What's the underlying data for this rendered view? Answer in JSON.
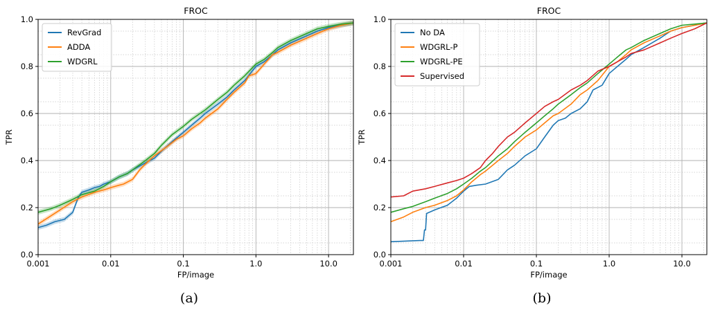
{
  "chart_data": [
    {
      "type": "line",
      "title": "FROC",
      "xlabel": "FP/image",
      "ylabel": "TPR",
      "xscale": "log",
      "xlim": [
        0.001,
        22
      ],
      "ylim": [
        0.0,
        1.0
      ],
      "x_ticks": [
        "0.001",
        "0.01",
        "0.1",
        "1.0",
        "10.0"
      ],
      "y_ticks": [
        "0.0",
        "0.2",
        "0.4",
        "0.6",
        "0.8",
        "1.0"
      ],
      "grid": true,
      "legend_position": "top-left",
      "series": [
        {
          "name": "RevGrad",
          "color": "#1f77b4",
          "band": true,
          "points": [
            [
              0.001,
              0.115
            ],
            [
              0.0013,
              0.125
            ],
            [
              0.0017,
              0.14
            ],
            [
              0.0023,
              0.15
            ],
            [
              0.003,
              0.18
            ],
            [
              0.0033,
              0.215
            ],
            [
              0.0036,
              0.245
            ],
            [
              0.004,
              0.265
            ],
            [
              0.005,
              0.275
            ],
            [
              0.006,
              0.285
            ],
            [
              0.007,
              0.29
            ],
            [
              0.008,
              0.3
            ],
            [
              0.01,
              0.31
            ],
            [
              0.013,
              0.33
            ],
            [
              0.017,
              0.345
            ],
            [
              0.02,
              0.36
            ],
            [
              0.03,
              0.39
            ],
            [
              0.04,
              0.41
            ],
            [
              0.05,
              0.44
            ],
            [
              0.07,
              0.48
            ],
            [
              0.1,
              0.52
            ],
            [
              0.13,
              0.55
            ],
            [
              0.17,
              0.58
            ],
            [
              0.2,
              0.6
            ],
            [
              0.3,
              0.64
            ],
            [
              0.4,
              0.67
            ],
            [
              0.5,
              0.7
            ],
            [
              0.7,
              0.74
            ],
            [
              1.0,
              0.8
            ],
            [
              1.3,
              0.82
            ],
            [
              1.7,
              0.85
            ],
            [
              2.0,
              0.87
            ],
            [
              3.0,
              0.9
            ],
            [
              5.0,
              0.93
            ],
            [
              7.0,
              0.95
            ],
            [
              10.0,
              0.965
            ],
            [
              15.0,
              0.975
            ],
            [
              22.0,
              0.985
            ]
          ]
        },
        {
          "name": "ADDA",
          "color": "#ff7f0e",
          "band": true,
          "points": [
            [
              0.001,
              0.13
            ],
            [
              0.0015,
              0.165
            ],
            [
              0.002,
              0.19
            ],
            [
              0.003,
              0.225
            ],
            [
              0.004,
              0.245
            ],
            [
              0.006,
              0.265
            ],
            [
              0.008,
              0.275
            ],
            [
              0.01,
              0.285
            ],
            [
              0.013,
              0.295
            ],
            [
              0.015,
              0.3
            ],
            [
              0.02,
              0.32
            ],
            [
              0.025,
              0.36
            ],
            [
              0.03,
              0.385
            ],
            [
              0.04,
              0.42
            ],
            [
              0.06,
              0.46
            ],
            [
              0.08,
              0.49
            ],
            [
              0.1,
              0.505
            ],
            [
              0.13,
              0.535
            ],
            [
              0.17,
              0.56
            ],
            [
              0.2,
              0.58
            ],
            [
              0.3,
              0.62
            ],
            [
              0.4,
              0.66
            ],
            [
              0.5,
              0.69
            ],
            [
              0.7,
              0.73
            ],
            [
              0.8,
              0.76
            ],
            [
              1.0,
              0.77
            ],
            [
              1.3,
              0.81
            ],
            [
              1.7,
              0.85
            ],
            [
              2.0,
              0.86
            ],
            [
              3.0,
              0.89
            ],
            [
              5.0,
              0.92
            ],
            [
              7.0,
              0.94
            ],
            [
              10.0,
              0.96
            ],
            [
              15.0,
              0.975
            ],
            [
              22.0,
              0.985
            ]
          ]
        },
        {
          "name": "WDGRL",
          "color": "#2ca02c",
          "band": true,
          "points": [
            [
              0.001,
              0.18
            ],
            [
              0.0015,
              0.195
            ],
            [
              0.002,
              0.21
            ],
            [
              0.003,
              0.235
            ],
            [
              0.004,
              0.255
            ],
            [
              0.006,
              0.27
            ],
            [
              0.008,
              0.29
            ],
            [
              0.01,
              0.31
            ],
            [
              0.013,
              0.33
            ],
            [
              0.017,
              0.345
            ],
            [
              0.02,
              0.36
            ],
            [
              0.03,
              0.4
            ],
            [
              0.04,
              0.43
            ],
            [
              0.05,
              0.465
            ],
            [
              0.07,
              0.51
            ],
            [
              0.1,
              0.545
            ],
            [
              0.13,
              0.575
            ],
            [
              0.17,
              0.6
            ],
            [
              0.2,
              0.615
            ],
            [
              0.3,
              0.66
            ],
            [
              0.4,
              0.69
            ],
            [
              0.5,
              0.72
            ],
            [
              0.7,
              0.76
            ],
            [
              1.0,
              0.81
            ],
            [
              1.3,
              0.83
            ],
            [
              1.7,
              0.86
            ],
            [
              2.0,
              0.88
            ],
            [
              3.0,
              0.91
            ],
            [
              5.0,
              0.94
            ],
            [
              7.0,
              0.96
            ],
            [
              10.0,
              0.97
            ],
            [
              15.0,
              0.98
            ],
            [
              22.0,
              0.985
            ]
          ]
        }
      ]
    },
    {
      "type": "line",
      "title": "FROC",
      "xlabel": "FP/image",
      "ylabel": "TPR",
      "xscale": "log",
      "xlim": [
        0.001,
        22
      ],
      "ylim": [
        0.0,
        1.0
      ],
      "x_ticks": [
        "0.001",
        "0.01",
        "0.1",
        "1.0",
        "10.0"
      ],
      "y_ticks": [
        "0.0",
        "0.2",
        "0.4",
        "0.6",
        "0.8",
        "1.0"
      ],
      "grid": true,
      "legend_position": "top-left",
      "series": [
        {
          "name": "No DA",
          "color": "#1f77b4",
          "points": [
            [
              0.001,
              0.055
            ],
            [
              0.0025,
              0.06
            ],
            [
              0.0028,
              0.06
            ],
            [
              0.0029,
              0.105
            ],
            [
              0.003,
              0.105
            ],
            [
              0.0031,
              0.175
            ],
            [
              0.004,
              0.19
            ],
            [
              0.006,
              0.21
            ],
            [
              0.008,
              0.24
            ],
            [
              0.01,
              0.27
            ],
            [
              0.012,
              0.29
            ],
            [
              0.015,
              0.295
            ],
            [
              0.02,
              0.3
            ],
            [
              0.03,
              0.32
            ],
            [
              0.04,
              0.36
            ],
            [
              0.05,
              0.38
            ],
            [
              0.07,
              0.42
            ],
            [
              0.1,
              0.45
            ],
            [
              0.13,
              0.5
            ],
            [
              0.17,
              0.55
            ],
            [
              0.2,
              0.57
            ],
            [
              0.25,
              0.58
            ],
            [
              0.3,
              0.6
            ],
            [
              0.4,
              0.62
            ],
            [
              0.5,
              0.65
            ],
            [
              0.6,
              0.7
            ],
            [
              0.8,
              0.72
            ],
            [
              1.0,
              0.77
            ],
            [
              1.3,
              0.8
            ],
            [
              1.7,
              0.83
            ],
            [
              2.0,
              0.85
            ],
            [
              3.0,
              0.88
            ],
            [
              5.0,
              0.92
            ],
            [
              7.0,
              0.95
            ],
            [
              10.0,
              0.965
            ],
            [
              15.0,
              0.975
            ],
            [
              22.0,
              0.985
            ]
          ]
        },
        {
          "name": "WDGRL-P",
          "color": "#ff7f0e",
          "points": [
            [
              0.001,
              0.14
            ],
            [
              0.0015,
              0.16
            ],
            [
              0.002,
              0.18
            ],
            [
              0.003,
              0.2
            ],
            [
              0.004,
              0.21
            ],
            [
              0.006,
              0.23
            ],
            [
              0.008,
              0.25
            ],
            [
              0.01,
              0.275
            ],
            [
              0.013,
              0.31
            ],
            [
              0.017,
              0.34
            ],
            [
              0.02,
              0.355
            ],
            [
              0.03,
              0.4
            ],
            [
              0.04,
              0.43
            ],
            [
              0.05,
              0.46
            ],
            [
              0.07,
              0.5
            ],
            [
              0.1,
              0.53
            ],
            [
              0.13,
              0.56
            ],
            [
              0.17,
              0.59
            ],
            [
              0.2,
              0.6
            ],
            [
              0.3,
              0.64
            ],
            [
              0.4,
              0.68
            ],
            [
              0.5,
              0.7
            ],
            [
              0.7,
              0.74
            ],
            [
              1.0,
              0.8
            ],
            [
              1.3,
              0.82
            ],
            [
              1.7,
              0.85
            ],
            [
              2.0,
              0.87
            ],
            [
              3.0,
              0.9
            ],
            [
              5.0,
              0.93
            ],
            [
              7.0,
              0.95
            ],
            [
              10.0,
              0.965
            ],
            [
              15.0,
              0.975
            ],
            [
              22.0,
              0.985
            ]
          ]
        },
        {
          "name": "WDGRL-PE",
          "color": "#2ca02c",
          "points": [
            [
              0.001,
              0.18
            ],
            [
              0.0015,
              0.195
            ],
            [
              0.002,
              0.205
            ],
            [
              0.003,
              0.225
            ],
            [
              0.004,
              0.24
            ],
            [
              0.006,
              0.26
            ],
            [
              0.008,
              0.28
            ],
            [
              0.01,
              0.3
            ],
            [
              0.013,
              0.325
            ],
            [
              0.017,
              0.355
            ],
            [
              0.02,
              0.37
            ],
            [
              0.03,
              0.42
            ],
            [
              0.04,
              0.45
            ],
            [
              0.05,
              0.48
            ],
            [
              0.07,
              0.52
            ],
            [
              0.1,
              0.56
            ],
            [
              0.13,
              0.59
            ],
            [
              0.17,
              0.62
            ],
            [
              0.2,
              0.64
            ],
            [
              0.3,
              0.68
            ],
            [
              0.4,
              0.71
            ],
            [
              0.5,
              0.73
            ],
            [
              0.7,
              0.77
            ],
            [
              1.0,
              0.81
            ],
            [
              1.3,
              0.84
            ],
            [
              1.7,
              0.87
            ],
            [
              2.0,
              0.88
            ],
            [
              3.0,
              0.91
            ],
            [
              5.0,
              0.94
            ],
            [
              7.0,
              0.96
            ],
            [
              10.0,
              0.975
            ],
            [
              15.0,
              0.98
            ],
            [
              22.0,
              0.985
            ]
          ]
        },
        {
          "name": "Supervised",
          "color": "#d62728",
          "points": [
            [
              0.001,
              0.245
            ],
            [
              0.0015,
              0.25
            ],
            [
              0.002,
              0.27
            ],
            [
              0.003,
              0.28
            ],
            [
              0.004,
              0.29
            ],
            [
              0.006,
              0.305
            ],
            [
              0.008,
              0.315
            ],
            [
              0.01,
              0.325
            ],
            [
              0.013,
              0.345
            ],
            [
              0.017,
              0.37
            ],
            [
              0.02,
              0.4
            ],
            [
              0.025,
              0.43
            ],
            [
              0.03,
              0.46
            ],
            [
              0.04,
              0.5
            ],
            [
              0.05,
              0.52
            ],
            [
              0.07,
              0.56
            ],
            [
              0.1,
              0.6
            ],
            [
              0.13,
              0.63
            ],
            [
              0.17,
              0.65
            ],
            [
              0.2,
              0.66
            ],
            [
              0.3,
              0.7
            ],
            [
              0.4,
              0.72
            ],
            [
              0.5,
              0.74
            ],
            [
              0.7,
              0.78
            ],
            [
              1.0,
              0.8
            ],
            [
              1.3,
              0.82
            ],
            [
              1.7,
              0.84
            ],
            [
              2.0,
              0.855
            ],
            [
              3.0,
              0.87
            ],
            [
              5.0,
              0.9
            ],
            [
              7.0,
              0.92
            ],
            [
              10.0,
              0.94
            ],
            [
              15.0,
              0.96
            ],
            [
              22.0,
              0.985
            ]
          ]
        }
      ]
    }
  ],
  "captions": [
    "(a)",
    "(b)"
  ]
}
